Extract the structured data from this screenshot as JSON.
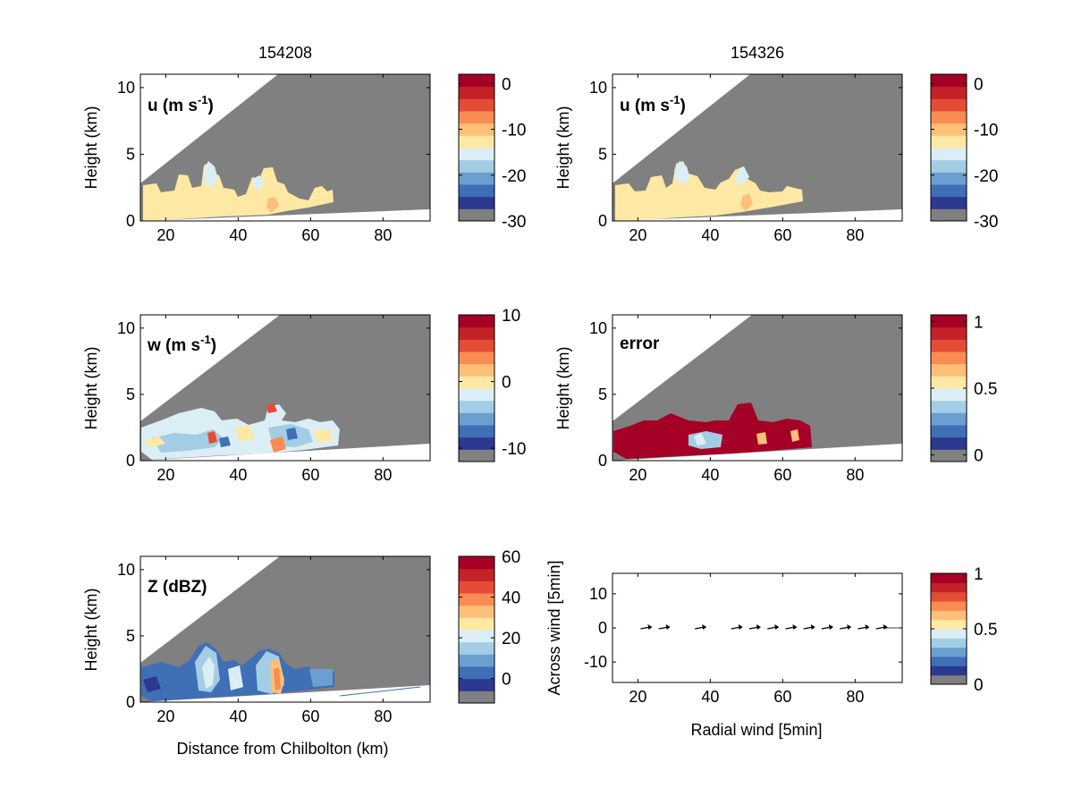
{
  "figure": {
    "column_titles": [
      "154208",
      "154326"
    ]
  },
  "colors": {
    "background_gray": "#808080",
    "colormap": [
      "#808080",
      "#2b3990",
      "#3f6fb5",
      "#6b9fcf",
      "#a3cde4",
      "#dceef5",
      "#fde9a3",
      "#fdc079",
      "#f88c52",
      "#e54c35",
      "#c32227",
      "#a50026"
    ]
  },
  "chart_data": [
    {
      "type": "heatmap",
      "panel": "u-154208",
      "title": "154208",
      "annotation": "u (m s-1)",
      "xlabel": "",
      "ylabel": "Height (km)",
      "xlim": [
        13,
        93
      ],
      "ylim": [
        0,
        11
      ],
      "xticks": [
        "20",
        "40",
        "60",
        "80"
      ],
      "yticks": [
        "0",
        "5",
        "10"
      ],
      "colorbar": {
        "ticks": [
          "0",
          "-10",
          "-20",
          "-30"
        ],
        "range": [
          -30,
          2
        ]
      }
    },
    {
      "type": "heatmap",
      "panel": "u-154326",
      "title": "154326",
      "annotation": "u (m s-1)",
      "xlabel": "",
      "ylabel": "Height (km)",
      "xlim": [
        13,
        93
      ],
      "ylim": [
        0,
        11
      ],
      "xticks": [
        "20",
        "40",
        "60",
        "80"
      ],
      "yticks": [
        "0",
        "5",
        "10"
      ],
      "colorbar": {
        "ticks": [
          "0",
          "-10",
          "-20",
          "-30"
        ],
        "range": [
          -30,
          2
        ]
      }
    },
    {
      "type": "heatmap",
      "panel": "w-154208",
      "annotation": "w (m s-1)",
      "xlabel": "",
      "ylabel": "Height (km)",
      "xlim": [
        13,
        93
      ],
      "ylim": [
        0,
        11
      ],
      "xticks": [
        "20",
        "40",
        "60",
        "80"
      ],
      "yticks": [
        "0",
        "5",
        "10"
      ],
      "colorbar": {
        "ticks": [
          "10",
          "0",
          "-10"
        ],
        "range": [
          -12,
          10
        ]
      }
    },
    {
      "type": "heatmap",
      "panel": "error-154326",
      "annotation": "error",
      "xlabel": "",
      "ylabel": "Height (km)",
      "xlim": [
        13,
        93
      ],
      "ylim": [
        0,
        11
      ],
      "xticks": [
        "20",
        "40",
        "60",
        "80"
      ],
      "yticks": [
        "0",
        "5",
        "10"
      ],
      "colorbar": {
        "ticks": [
          "1",
          "0.5",
          "0"
        ],
        "range": [
          -0.05,
          1.05
        ]
      }
    },
    {
      "type": "heatmap",
      "panel": "Z-154208",
      "annotation": "Z (dBZ)",
      "xlabel": "Distance from Chilbolton (km)",
      "ylabel": "Height (km)",
      "xlim": [
        13,
        93
      ],
      "ylim": [
        0,
        11
      ],
      "xticks": [
        "20",
        "40",
        "60",
        "80"
      ],
      "yticks": [
        "0",
        "5",
        "10"
      ],
      "colorbar": {
        "ticks": [
          "60",
          "40",
          "20",
          "0"
        ],
        "range": [
          -12,
          60
        ]
      }
    },
    {
      "type": "scatter",
      "panel": "wind-vectors",
      "annotation": "",
      "xlabel": "Radial wind [5min]",
      "ylabel": "Across wind [5min]",
      "xlim": [
        13,
        93
      ],
      "ylim": [
        -16,
        16
      ],
      "xticks": [
        "20",
        "40",
        "60",
        "80"
      ],
      "yticks": [
        "10",
        "0",
        "-10"
      ],
      "x": [
        22,
        27,
        37,
        47,
        52,
        57,
        62,
        67,
        72,
        77,
        82,
        87
      ],
      "y": [
        0,
        0,
        0,
        0,
        0,
        0,
        0,
        0,
        0,
        0,
        0,
        0
      ],
      "colorbar": {
        "ticks": [
          "1",
          "0.5",
          "0"
        ],
        "range": [
          0,
          1
        ]
      }
    }
  ]
}
